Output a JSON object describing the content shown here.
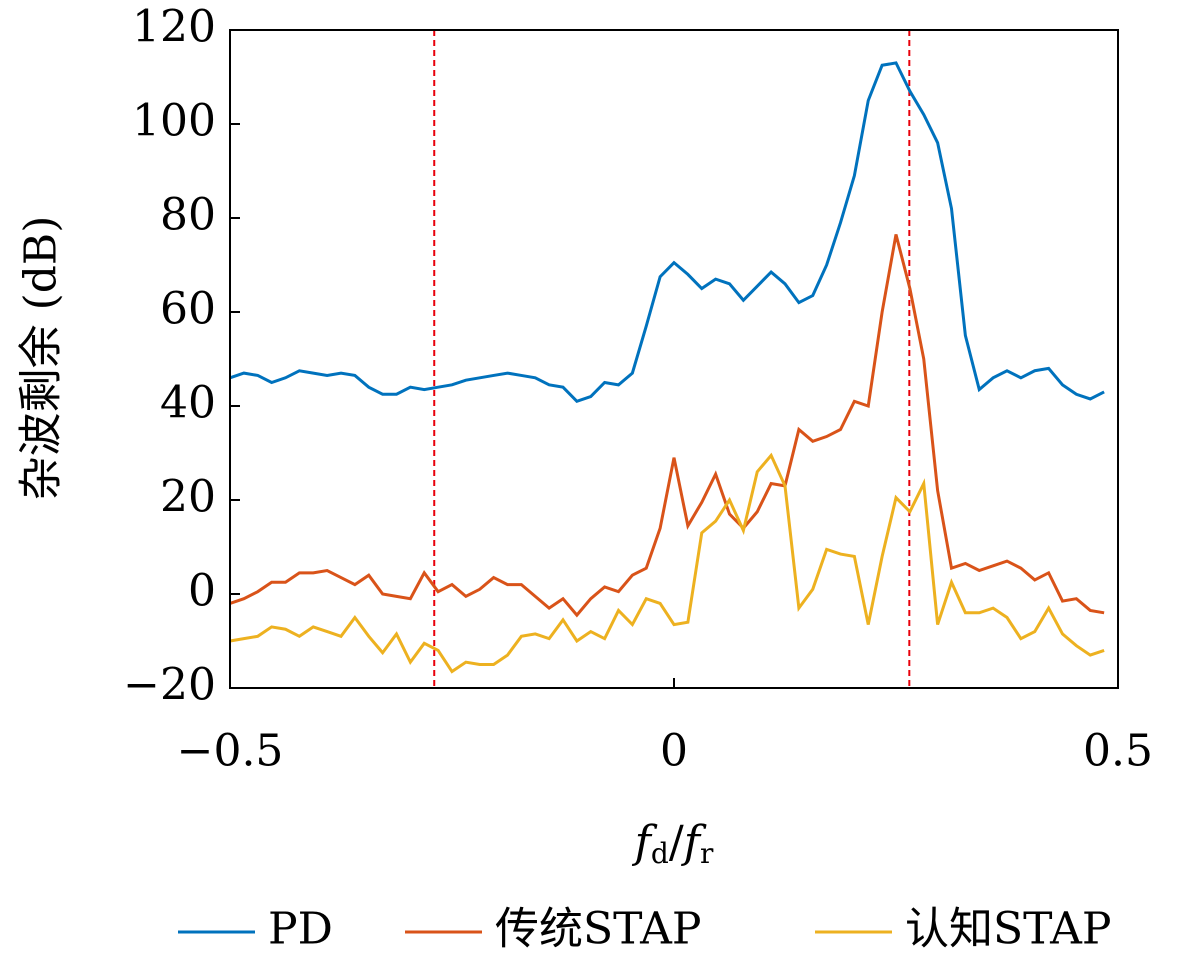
{
  "chart_data": {
    "type": "line",
    "ylabel": "杂波剩余 (dB)",
    "xlabel": [
      "f",
      "d",
      "/",
      "f",
      "r"
    ],
    "x": [
      -0.5,
      -0.484375,
      -0.46875,
      -0.453125,
      -0.4375,
      -0.421875,
      -0.40625,
      -0.390625,
      -0.375,
      -0.359375,
      -0.34375,
      -0.328125,
      -0.3125,
      -0.296875,
      -0.28125,
      -0.265625,
      -0.25,
      -0.234375,
      -0.21875,
      -0.203125,
      -0.1875,
      -0.171875,
      -0.15625,
      -0.140625,
      -0.125,
      -0.109375,
      -0.09375,
      -0.078125,
      -0.0625,
      -0.046875,
      -0.03125,
      -0.015625,
      0,
      0.015625,
      0.03125,
      0.046875,
      0.0625,
      0.078125,
      0.09375,
      0.109375,
      0.125,
      0.140625,
      0.15625,
      0.171875,
      0.1875,
      0.203125,
      0.21875,
      0.234375,
      0.25,
      0.265625,
      0.28125,
      0.296875,
      0.3125,
      0.328125,
      0.34375,
      0.359375,
      0.375,
      0.390625,
      0.40625,
      0.421875,
      0.4375,
      0.453125,
      0.46875,
      0.484375
    ],
    "series": [
      {
        "name": "PD",
        "color": "#0072bd",
        "values": [
          46,
          47,
          46.5,
          45,
          46,
          47.5,
          47,
          46.5,
          47,
          46.5,
          44,
          42.5,
          42.5,
          44,
          43.5,
          44,
          44.5,
          45.5,
          46,
          46.5,
          47,
          46.5,
          46,
          44.5,
          44,
          41,
          42,
          45,
          44.5,
          47,
          57,
          67.5,
          70.5,
          68,
          65,
          67,
          66,
          62.5,
          65.5,
          68.5,
          66,
          62,
          63.5,
          70,
          79,
          89,
          105,
          112.5,
          113,
          107,
          102,
          96,
          82,
          55,
          43.5,
          46,
          47.5,
          46,
          47.5,
          48,
          44.5,
          42.5,
          41.5,
          43
        ]
      },
      {
        "name": "传统STAP",
        "color": "#d95319",
        "values": [
          -2,
          -1,
          0.5,
          2.5,
          2.5,
          4.5,
          4.5,
          5,
          3.5,
          2,
          4,
          0,
          -0.5,
          -1,
          4.5,
          0.5,
          2,
          -0.5,
          1,
          3.5,
          2,
          2,
          -0.5,
          -3,
          -1,
          -4.5,
          -1,
          1.5,
          0.5,
          4,
          5.5,
          14,
          29,
          14.5,
          19.5,
          25.5,
          17,
          14,
          17.5,
          23.5,
          23,
          35,
          32.5,
          33.5,
          35,
          41,
          40,
          60,
          76.5,
          65,
          50,
          22,
          5.5,
          6.5,
          5,
          6,
          7,
          5.5,
          3,
          4.5,
          -1.5,
          -1,
          -3.5,
          -4
        ]
      },
      {
        "name": "认知STAP",
        "color": "#edb120",
        "values": [
          -10,
          -9.5,
          -9,
          -7,
          -7.5,
          -9,
          -7,
          -8,
          -9,
          -5,
          -9,
          -12.5,
          -8.5,
          -14.5,
          -10.5,
          -12,
          -16.5,
          -14.5,
          -15,
          -15,
          -13,
          -9,
          -8.5,
          -9.5,
          -5.5,
          -10,
          -8,
          -9.5,
          -3.5,
          -6.5,
          -1,
          -2,
          -6.5,
          -6,
          13,
          15.5,
          20,
          13.5,
          26,
          29.5,
          23,
          -3,
          1,
          9.5,
          8.5,
          8,
          -6.5,
          8,
          20.5,
          17.5,
          23.5,
          -6.5,
          2.5,
          -4,
          -4,
          -3,
          -5,
          -9.5,
          -8,
          -3,
          -8.5,
          -11,
          -13,
          -12
        ]
      }
    ],
    "vlines": [
      -0.27,
      0.265
    ],
    "vline_color": "#e8000b",
    "xlim": [
      -0.5,
      0.5
    ],
    "xticks": [
      {
        "value": -0.5,
        "label": "−0.5"
      },
      0,
      0.5
    ],
    "ylim": [
      -20,
      120
    ],
    "yticks": [
      {
        "value": -20,
        "label": "−20"
      },
      0,
      20,
      40,
      60,
      80,
      100,
      120
    ],
    "legend": "bottom"
  }
}
